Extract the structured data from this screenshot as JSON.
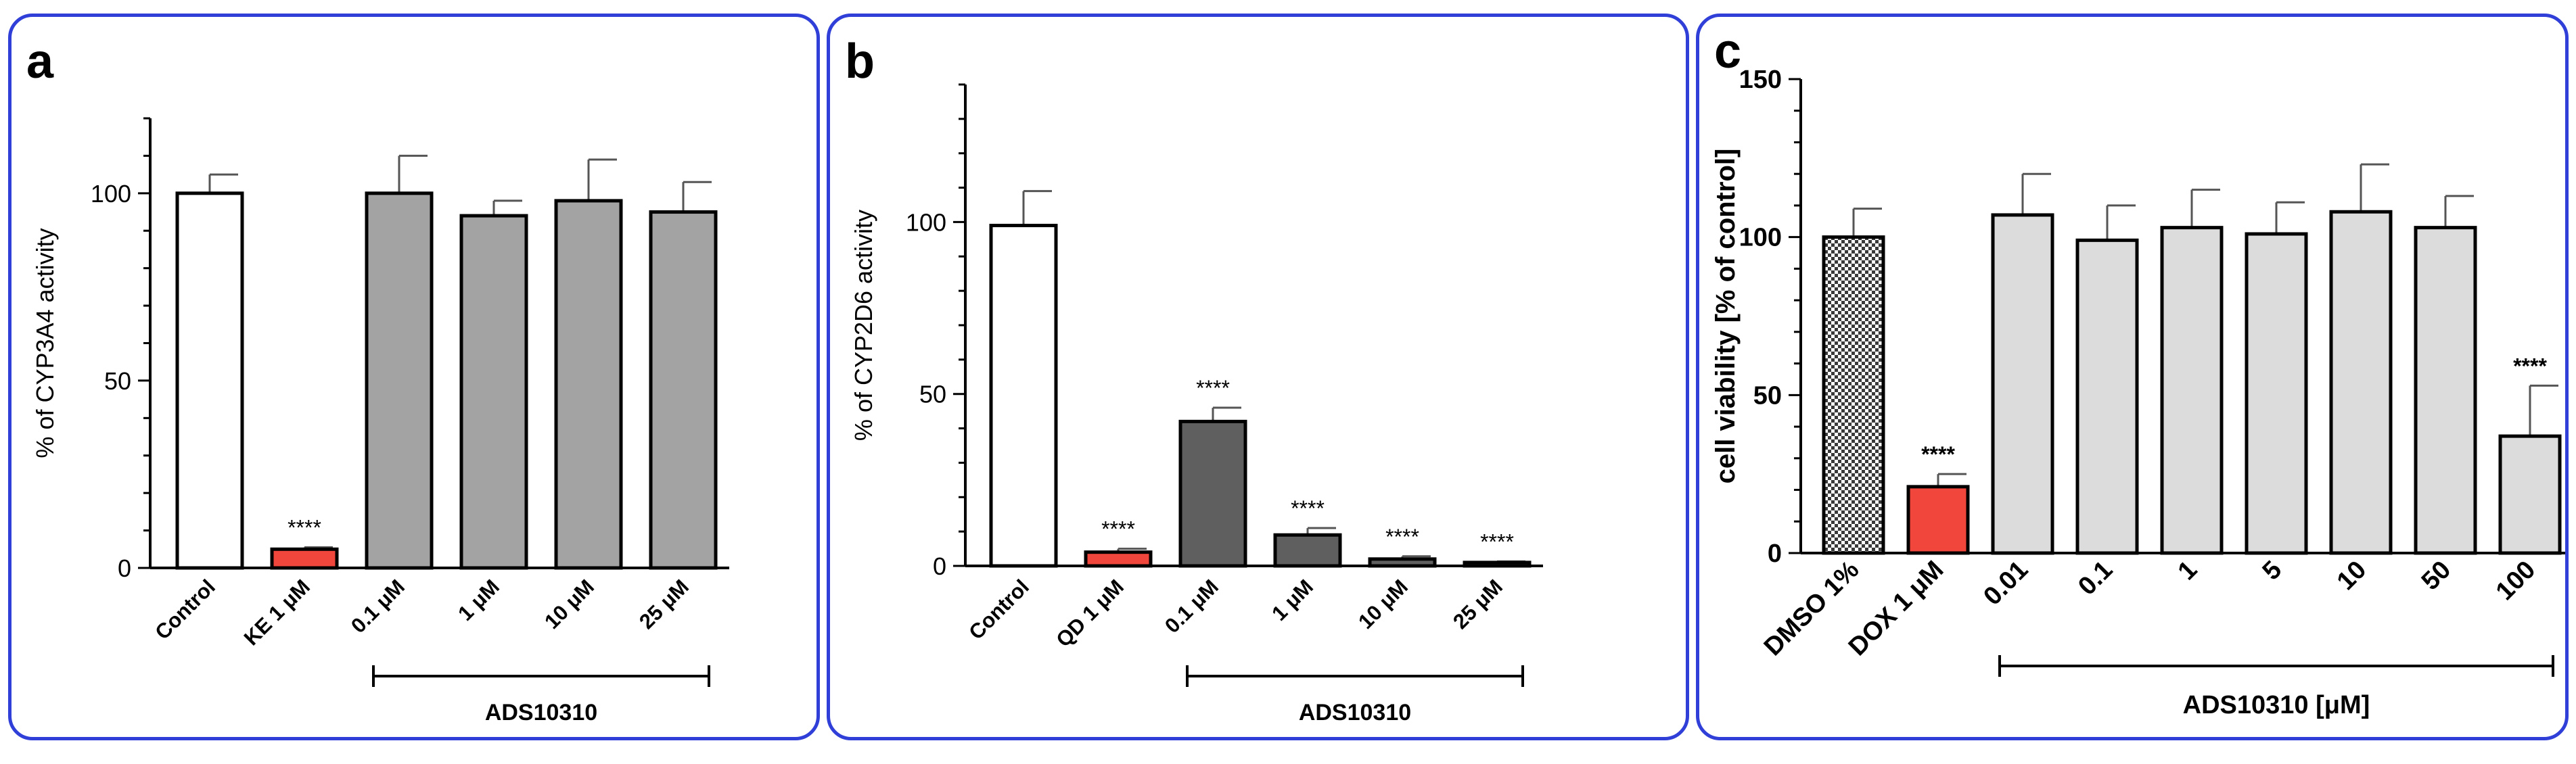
{
  "chart_data": [
    {
      "type": "bar",
      "panel_label": "a",
      "ylabel": "% of CYP3A4 activity",
      "ylim": [
        0,
        120
      ],
      "yticks": [
        0,
        50,
        100
      ],
      "categories": [
        "Control",
        "KE 1 μM",
        "0.1 μM",
        "1 μM",
        "10 μM",
        "25 μM"
      ],
      "values": [
        100,
        5,
        100,
        94,
        98,
        95
      ],
      "errors": [
        5,
        0.5,
        10,
        4,
        11,
        8
      ],
      "significance": [
        "",
        "****",
        "",
        "",
        "",
        ""
      ],
      "bar_colors": [
        "#ffffff",
        "#f0463c",
        "#a3a3a3",
        "#a3a3a3",
        "#a3a3a3",
        "#a3a3a3"
      ],
      "group_label": "ADS10310",
      "group_range": [
        2,
        5
      ]
    },
    {
      "type": "bar",
      "panel_label": "b",
      "ylabel": "% of CYP2D6 activity",
      "ylim": [
        0,
        140
      ],
      "yticks": [
        0,
        50,
        100
      ],
      "categories": [
        "Control",
        "QD 1 μM",
        "0.1 μM",
        "1 μM",
        "10 μM",
        "25 μM"
      ],
      "values": [
        99,
        4,
        42,
        9,
        2,
        1
      ],
      "errors": [
        10,
        1,
        4,
        2,
        0.8,
        0.3
      ],
      "significance": [
        "",
        "****",
        "****",
        "****",
        "****",
        "****"
      ],
      "bar_colors": [
        "#ffffff",
        "#f0463c",
        "#5f5f5f",
        "#5f5f5f",
        "#5f5f5f",
        "#5f5f5f"
      ],
      "group_label": "ADS10310",
      "group_range": [
        2,
        5
      ]
    },
    {
      "type": "bar",
      "panel_label": "c",
      "ylabel": "cell viability [% of control]",
      "ylim": [
        0,
        150
      ],
      "yticks": [
        0,
        50,
        100,
        150
      ],
      "categories": [
        "DMSO 1%",
        "DOX 1 μM",
        "0.01",
        "0.1",
        "1",
        "5",
        "10",
        "50",
        "100"
      ],
      "values": [
        100,
        21,
        107,
        99,
        103,
        101,
        108,
        103,
        37
      ],
      "errors": [
        9,
        4,
        13,
        11,
        12,
        10,
        15,
        10,
        16
      ],
      "significance": [
        "",
        "****",
        "",
        "",
        "",
        "",
        "",
        "",
        "****"
      ],
      "bar_colors": [
        "#ffffff",
        "#f0463c",
        "#dcdcdc",
        "#dcdcdc",
        "#dcdcdc",
        "#dcdcdc",
        "#dcdcdc",
        "#dcdcdc",
        "#dcdcdc"
      ],
      "first_bar_pattern": "checker",
      "group_label": "ADS10310 [μM]",
      "group_range": [
        2,
        8
      ]
    }
  ]
}
